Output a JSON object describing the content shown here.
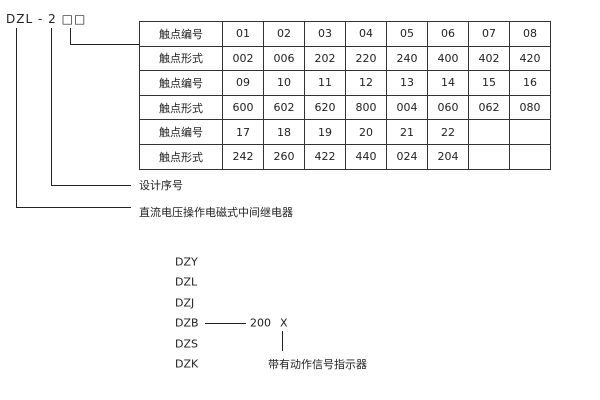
{
  "model_code": {
    "prefix": "DZL",
    "dash": "-",
    "digit": "2",
    "boxes": "□□"
  },
  "table": {
    "rows": [
      [
        "触点编号",
        "01",
        "02",
        "03",
        "04",
        "05",
        "06",
        "07",
        "08"
      ],
      [
        "触点形式",
        "002",
        "006",
        "202",
        "220",
        "240",
        "400",
        "402",
        "420"
      ],
      [
        "触点编号",
        "09",
        "10",
        "11",
        "12",
        "13",
        "14",
        "15",
        "16"
      ],
      [
        "触点形式",
        "600",
        "602",
        "620",
        "800",
        "004",
        "060",
        "062",
        "080"
      ],
      [
        "触点编号",
        "17",
        "18",
        "19",
        "20",
        "21",
        "22",
        "",
        ""
      ],
      [
        "触点形式",
        "242",
        "260",
        "422",
        "440",
        "024",
        "204",
        "",
        ""
      ]
    ]
  },
  "labels": {
    "design_no": "设计序号",
    "relay_type": "直流电压操作电磁式中间继电器"
  },
  "series": {
    "models": [
      "DZY",
      "DZL",
      "DZJ",
      "DZB",
      "DZS",
      "DZK"
    ],
    "code": "200",
    "suffix": "X",
    "suffix_label": "带有动作信号指示器"
  }
}
